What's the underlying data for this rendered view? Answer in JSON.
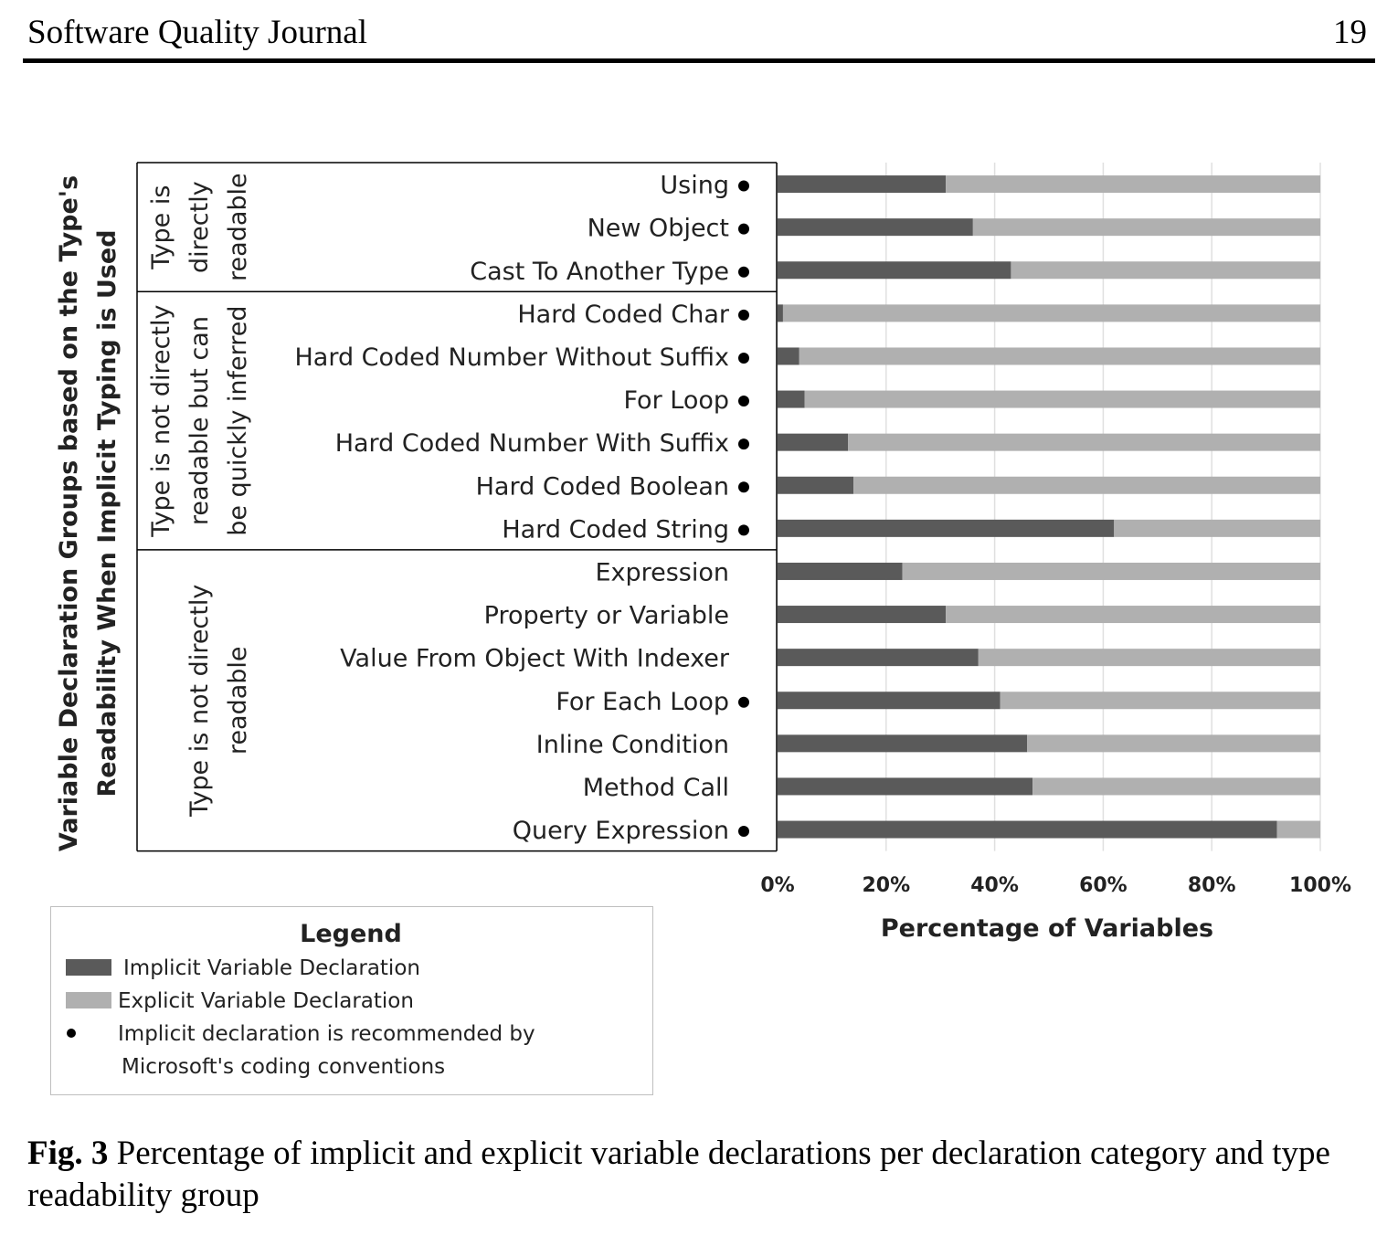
{
  "header": {
    "journal": "Software Quality Journal",
    "page_number": "19"
  },
  "caption": {
    "label": "Fig. 3",
    "text": "Percentage of implicit and explicit variable declarations per declaration category and type readability group"
  },
  "colors": {
    "implicit": "#5a5a5a",
    "explicit": "#b0b0b0",
    "grid": "#e0e0e0"
  },
  "chart_data": {
    "type": "bar",
    "orientation": "horizontal",
    "stacked": true,
    "y_axis_title": [
      "Variable Declaration Groups based on the Type's",
      "Readability When Implicit Typing is Used"
    ],
    "xlabel": "Percentage of Variables",
    "xlim": [
      0,
      100
    ],
    "x_ticks": [
      "0%",
      "20%",
      "40%",
      "60%",
      "80%",
      "100%"
    ],
    "grid": true,
    "groups": [
      {
        "label_lines": [
          "Type is",
          "directly",
          "readable"
        ],
        "count": 3
      },
      {
        "label_lines": [
          "Type is not directly",
          "readable but  can",
          "be quickly inferred"
        ],
        "count": 6
      },
      {
        "label_lines": [
          "Type is not directly",
          "readable"
        ],
        "count": 7
      }
    ],
    "categories": [
      "Using",
      "New Object",
      "Cast To Another Type",
      "Hard Coded Char",
      "Hard Coded Number Without Suffix",
      "For Loop",
      "Hard Coded Number With Suffix",
      "Hard Coded Boolean",
      "Hard Coded String",
      "Expression",
      "Property or Variable",
      "Value From Object With Indexer",
      "For Each Loop",
      "Inline Condition",
      "Method Call",
      "Query Expression"
    ],
    "recommended": [
      true,
      true,
      true,
      true,
      true,
      true,
      true,
      true,
      true,
      false,
      false,
      false,
      true,
      false,
      false,
      true
    ],
    "series": [
      {
        "name": "Implicit Variable Declaration",
        "values": [
          31,
          36,
          43,
          1,
          4,
          5,
          13,
          14,
          62,
          23,
          31,
          37,
          41,
          46,
          47,
          92
        ]
      },
      {
        "name": "Explicit Variable Declaration",
        "values": [
          69,
          64,
          57,
          99,
          96,
          95,
          87,
          86,
          38,
          77,
          69,
          63,
          59,
          54,
          53,
          8
        ]
      }
    ],
    "legend": {
      "title": "Legend",
      "position": "bottom-left",
      "items": [
        {
          "kind": "implicit",
          "text": "Implicit Variable Declaration"
        },
        {
          "kind": "explicit",
          "text": "Explicit Variable Declaration"
        },
        {
          "kind": "dot",
          "lines": [
            "Implicit declaration is recommended by",
            "Microsoft's coding conventions"
          ]
        }
      ]
    }
  }
}
